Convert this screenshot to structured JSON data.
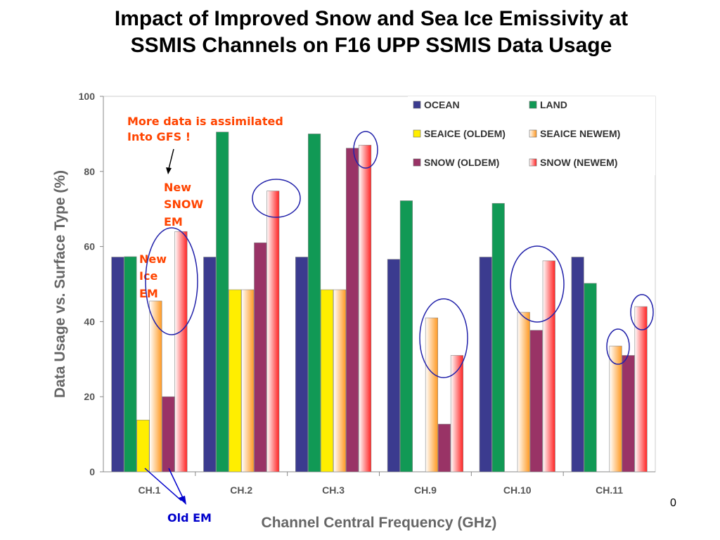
{
  "page": {
    "title_line1": "Impact of Improved Snow and Sea Ice Emissivity at",
    "title_line2": "SSMIS Channels on F16 UPP SSMIS Data Usage",
    "page_number": "0"
  },
  "chart_data": {
    "type": "bar",
    "xlabel": "Channel Central Frequency (GHz)",
    "ylabel": "Data Usage  vs. Surface Type (%)",
    "ylim": [
      0,
      100
    ],
    "yticks": [
      0,
      20,
      40,
      60,
      80,
      100
    ],
    "categories": [
      "CH.1",
      "CH.2",
      "CH.3",
      "CH.9",
      "CH.10",
      "CH.11"
    ],
    "series": [
      {
        "name": "OCEAN",
        "color": "#3B3B8F",
        "values": [
          57.2,
          57.2,
          57.2,
          56.6,
          57.2,
          57.2
        ]
      },
      {
        "name": "LAND",
        "color": "#119955",
        "values": [
          57.3,
          90.5,
          90.0,
          72.2,
          71.5,
          50.2
        ]
      },
      {
        "name": "SEAICE (OLDEM)",
        "color": "#FFEE00",
        "values": [
          13.8,
          48.5,
          48.5,
          0,
          0,
          0
        ]
      },
      {
        "name": "SEAICE NEWEM)",
        "color": "#FF9922",
        "values": [
          45.5,
          48.5,
          48.5,
          41.0,
          42.5,
          33.5
        ]
      },
      {
        "name": "SNOW (OLDEM)",
        "color": "#993366",
        "values": [
          20.0,
          61.0,
          86.2,
          12.7,
          37.7,
          31.0
        ]
      },
      {
        "name": "SNOW (NEWEM)",
        "color": "#FF2222",
        "values": [
          64.0,
          74.8,
          87.0,
          31.0,
          56.2,
          44.0
        ]
      }
    ],
    "legend": {
      "position": "top-right",
      "entries": [
        "OCEAN",
        "LAND",
        "SEAICE (OLDEM)",
        "SEAICE NEWEM)",
        "SNOW (OLDEM)",
        "SNOW (NEWEM)"
      ]
    },
    "grid": false,
    "annotations": {
      "more_data_line1": "More data is assimilated",
      "more_data_line2": "Into GFS !",
      "new_snow_em_line1": "New",
      "new_snow_em_line2": "SNOW",
      "new_snow_em_line3": "EM",
      "new_ice_em_line1": "New",
      "new_ice_em_line2": "Ice",
      "new_ice_em_line3": "EM",
      "old_em": "Old EM",
      "annotation_color": "#FF4400",
      "old_em_color": "#0000CC"
    }
  }
}
